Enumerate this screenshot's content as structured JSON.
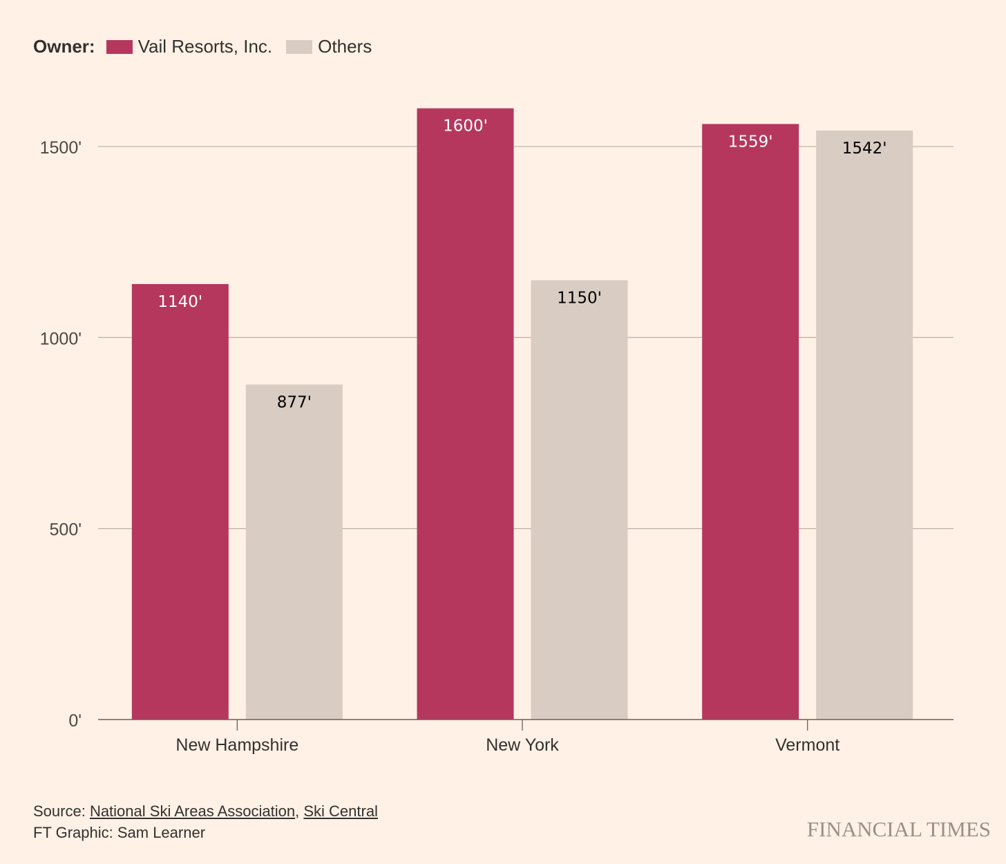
{
  "chart_data": {
    "type": "bar",
    "title": "",
    "legend_title": "Owner:",
    "legend_placement": "top-left",
    "categories": [
      "New Hampshire",
      "New York",
      "Vermont"
    ],
    "series": [
      {
        "name": "Vail Resorts, Inc.",
        "color": "#b5375e",
        "values": [
          1140,
          1600,
          1559
        ],
        "labels": [
          "1140'",
          "1600'",
          "1559'"
        ]
      },
      {
        "name": "Others",
        "color": "#d9ccc3",
        "values": [
          877,
          1150,
          1542
        ],
        "labels": [
          "877'",
          "1150'",
          "1542'"
        ]
      }
    ],
    "ylim": [
      0,
      1650
    ],
    "yticks": [
      0,
      500,
      1000,
      1500
    ],
    "ytick_labels": [
      "0'",
      "500'",
      "1000'",
      "1500'"
    ],
    "xlabel": "",
    "ylabel": "",
    "grid": true
  },
  "footer": {
    "source_prefix": "Source: ",
    "source_1": "National Ski Areas Association",
    "separator": ", ",
    "source_2": "Ski Central",
    "credit": "FT Graphic: Sam Learner",
    "logo": "FINANCIAL TIMES"
  }
}
